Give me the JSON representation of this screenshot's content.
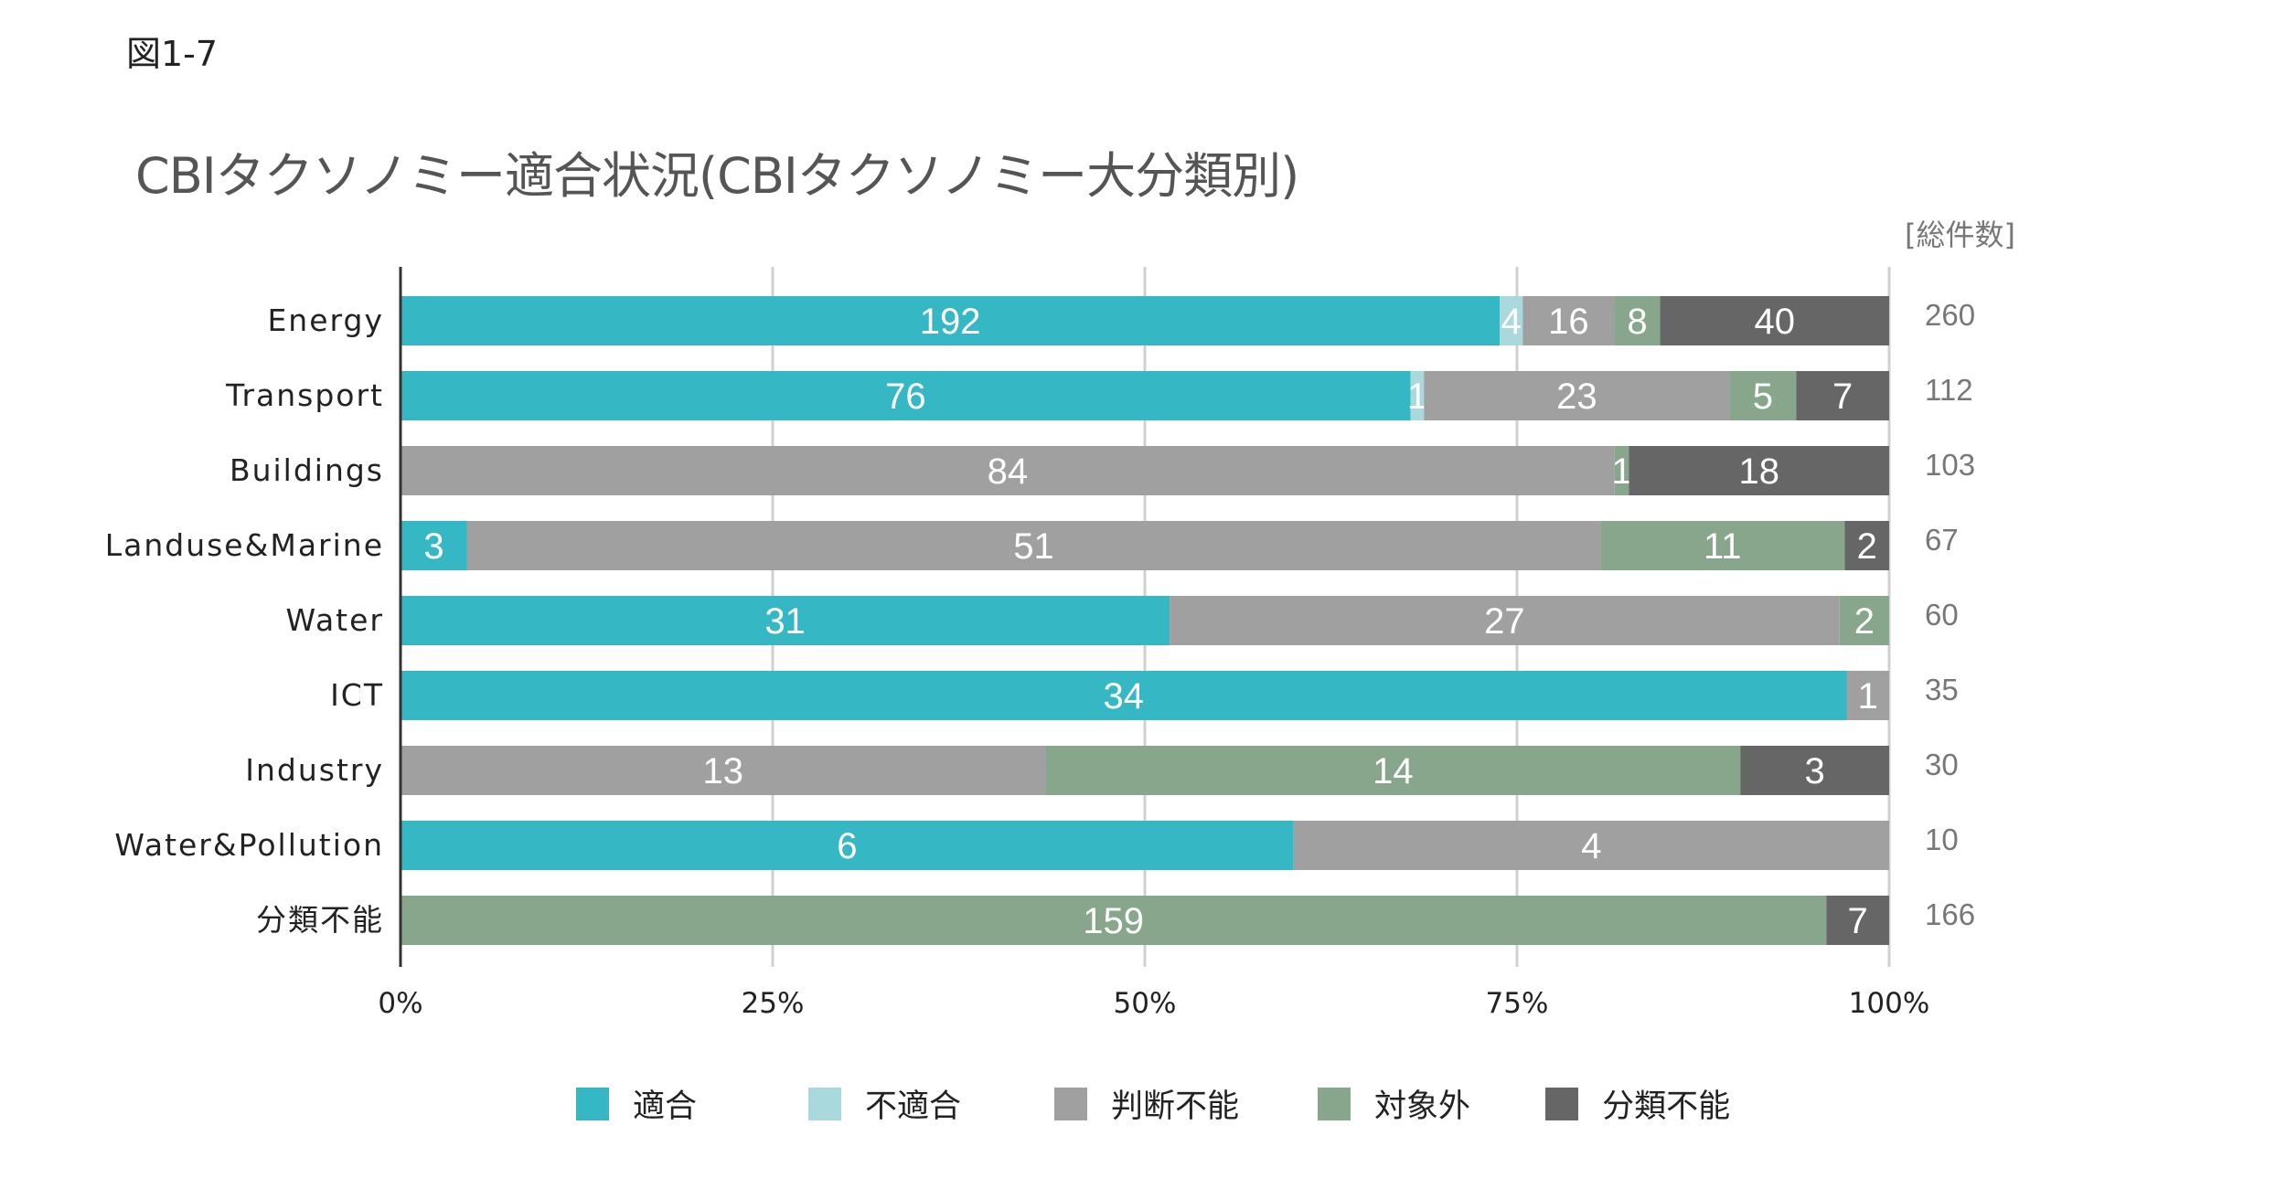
{
  "figure_label": "図1-7",
  "total_header": "[総件数]",
  "colors": {
    "適合": "#36b8c4",
    "不適合": "#a9d8dd",
    "判断不能": "#a0a0a0",
    "対象外": "#88a68c",
    "分類不能": "#666666",
    "axis": "#333333",
    "grid": "#d0d0d0"
  },
  "chart_data": {
    "type": "bar",
    "orientation": "horizontal",
    "stacked": "percent",
    "title": "CBIタクソノミー適合状況(CBIタクソノミー大分類別)",
    "categories": [
      "Energy",
      "Transport",
      "Buildings",
      "Landuse&Marine",
      "Water",
      "ICT",
      "Industry",
      "Water&Pollution",
      "分類不能"
    ],
    "series": [
      {
        "name": "適合",
        "values": [
          192,
          76,
          0,
          3,
          31,
          34,
          0,
          6,
          0
        ]
      },
      {
        "name": "不適合",
        "values": [
          4,
          1,
          0,
          0,
          0,
          0,
          0,
          0,
          0
        ]
      },
      {
        "name": "判断不能",
        "values": [
          16,
          23,
          84,
          51,
          27,
          1,
          13,
          4,
          0
        ]
      },
      {
        "name": "対象外",
        "values": [
          8,
          5,
          1,
          11,
          2,
          0,
          14,
          0,
          159
        ]
      },
      {
        "name": "分類不能",
        "values": [
          40,
          7,
          18,
          2,
          0,
          0,
          3,
          0,
          7
        ]
      }
    ],
    "totals": [
      260,
      112,
      103,
      67,
      60,
      35,
      30,
      10,
      166
    ],
    "xlim": [
      0,
      100
    ],
    "xticks": [
      "0%",
      "25%",
      "50%",
      "75%",
      "100%"
    ],
    "grid": true,
    "legend": "bottom"
  }
}
